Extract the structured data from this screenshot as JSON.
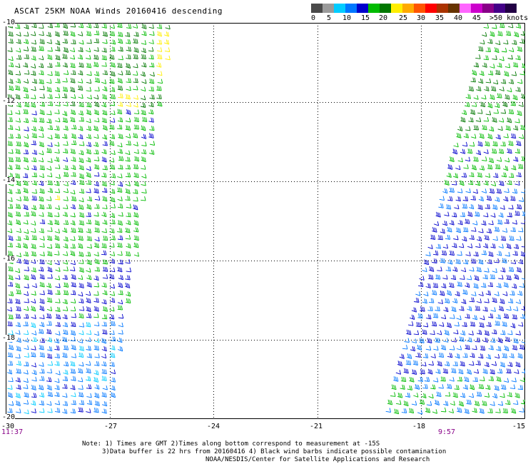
{
  "title": "ASCAT 25KM NOAA Winds 20160416 descending",
  "colorbar": {
    "colors": [
      "#4a4a4a",
      "#9a9a9a",
      "#00ccff",
      "#0077ff",
      "#0000cc",
      "#00bb00",
      "#007700",
      "#ffee00",
      "#ffaa00",
      "#ff5500",
      "#ff0000",
      "#aa3300",
      "#663300",
      "#ff66ff",
      "#cc00cc",
      "#880088",
      "#440088",
      "#220044"
    ],
    "labels": [
      "0",
      "5",
      "10",
      "15",
      "20",
      "25",
      "30",
      "35",
      "40",
      "45",
      ">50 knots"
    ]
  },
  "axes": {
    "lat_labels": [
      "-10",
      "-12",
      "-14",
      "-16",
      "-18",
      "-20"
    ],
    "lon_labels": [
      "-30",
      "-27",
      "-24",
      "-21",
      "-18",
      "-15"
    ]
  },
  "times": {
    "left": "11:37",
    "right": "9:57"
  },
  "notes": [
    "Note: 1) Times are GMT 2)Times along bottom correspond to measurement at -15S",
    "3)Data buffer is 22 hrs from 20160416 4) Black wind barbs indicate possible contamination",
    "NOAA/NESDIS/Center for Satellite Applications and Research"
  ]
}
